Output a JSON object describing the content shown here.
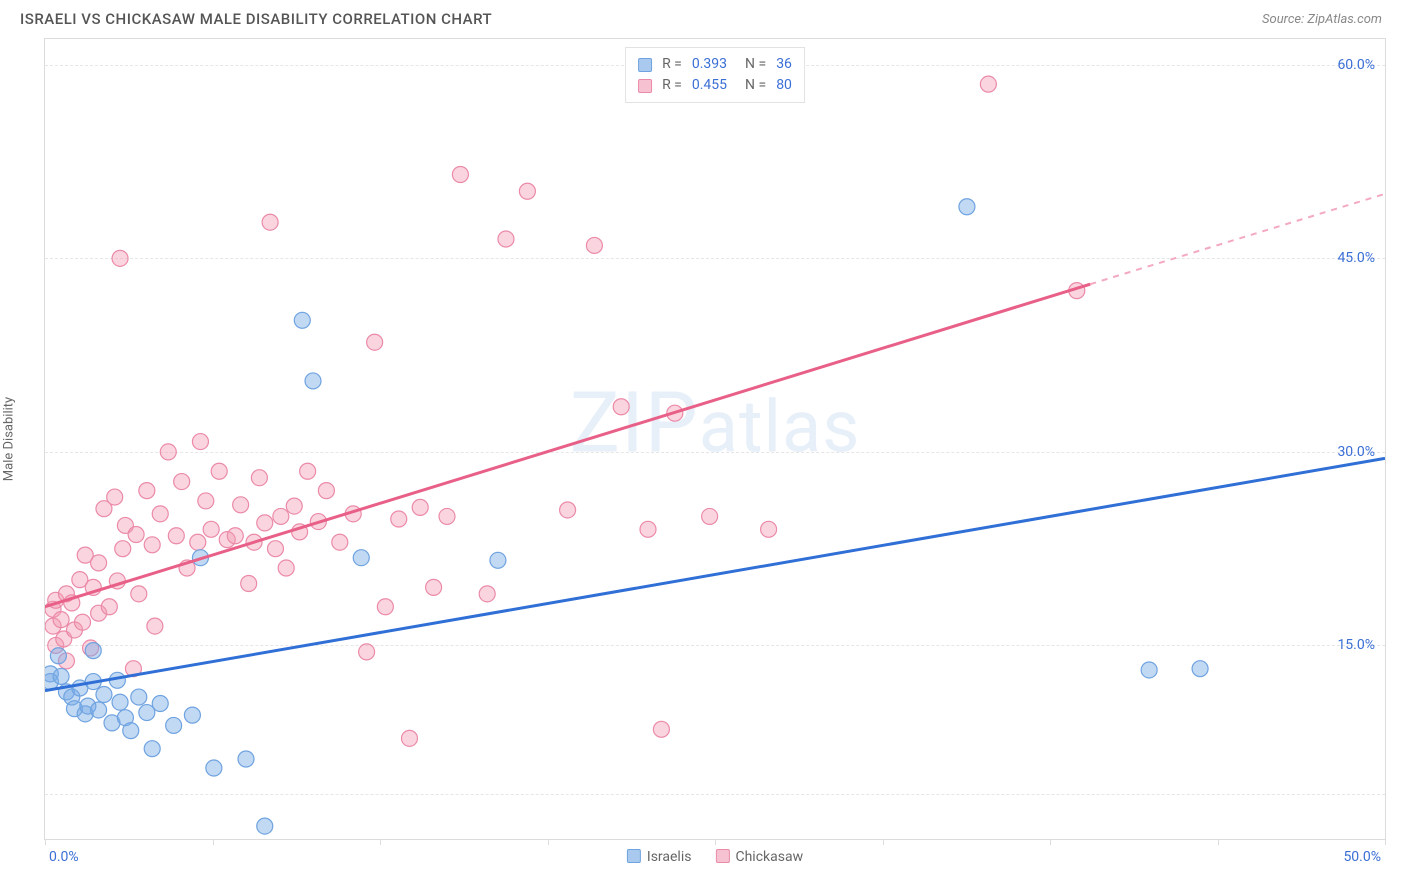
{
  "header": {
    "title": "ISRAELI VS CHICKASAW MALE DISABILITY CORRELATION CHART",
    "source": "Source: ZipAtlas.com"
  },
  "chart": {
    "type": "scatter",
    "ylabel": "Male Disability",
    "xlim": [
      0,
      50
    ],
    "ylim": [
      0,
      62
    ],
    "xtick_positions": [
      0,
      6.25,
      12.5,
      18.75,
      25,
      31.25,
      37.5,
      43.75,
      50
    ],
    "x_label_min": "0.0%",
    "x_label_max": "50.0%",
    "yticks": [
      {
        "v": 15,
        "label": "15.0%"
      },
      {
        "v": 30,
        "label": "30.0%"
      },
      {
        "v": 45,
        "label": "45.0%"
      },
      {
        "v": 60,
        "label": "60.0%"
      }
    ],
    "ygrid": [
      3.5,
      15,
      30,
      45,
      60
    ],
    "grid_color": "#e6e6e6",
    "background_color": "#ffffff",
    "tick_label_color": "#3b6fd6",
    "watermark": "ZIPatlas",
    "series": {
      "israelis": {
        "label": "Israelis",
        "fill": "rgba(120,170,230,0.45)",
        "stroke": "#6fa3e0",
        "swatch": "#a9c9ee",
        "swatch_border": "#6fa3e0",
        "marker_r": 8,
        "trend": {
          "x1": 0,
          "y1": 11.5,
          "x2": 50,
          "y2": 29.5,
          "color": "#2f6fd6"
        },
        "trend_ext": null,
        "R": "0.393",
        "N": "36",
        "points": [
          [
            0.2,
            12.8
          ],
          [
            0.2,
            12.2
          ],
          [
            0.6,
            12.6
          ],
          [
            0.5,
            14.2
          ],
          [
            0.8,
            11.4
          ],
          [
            1.0,
            11.0
          ],
          [
            1.1,
            10.1
          ],
          [
            1.3,
            11.7
          ],
          [
            1.5,
            9.7
          ],
          [
            1.6,
            10.3
          ],
          [
            1.8,
            12.2
          ],
          [
            1.8,
            14.6
          ],
          [
            2.0,
            10.0
          ],
          [
            2.2,
            11.2
          ],
          [
            2.5,
            9.0
          ],
          [
            2.8,
            10.6
          ],
          [
            2.7,
            12.3
          ],
          [
            3.0,
            9.4
          ],
          [
            3.2,
            8.4
          ],
          [
            3.5,
            11.0
          ],
          [
            3.8,
            9.8
          ],
          [
            4.0,
            7.0
          ],
          [
            4.3,
            10.5
          ],
          [
            4.8,
            8.8
          ],
          [
            5.5,
            9.6
          ],
          [
            5.8,
            21.8
          ],
          [
            6.3,
            5.5
          ],
          [
            7.5,
            6.2
          ],
          [
            8.2,
            1.0
          ],
          [
            9.6,
            40.2
          ],
          [
            10.0,
            35.5
          ],
          [
            11.8,
            21.8
          ],
          [
            16.9,
            21.6
          ],
          [
            34.4,
            49.0
          ],
          [
            41.2,
            13.1
          ],
          [
            43.1,
            13.2
          ]
        ]
      },
      "chickasaw": {
        "label": "Chickasaw",
        "fill": "rgba(242,150,175,0.40)",
        "stroke": "#eb8aa8",
        "swatch": "#f6c2d1",
        "swatch_border": "#eb8aa8",
        "marker_r": 8,
        "trend": {
          "x1": 0,
          "y1": 18.0,
          "x2": 39,
          "y2": 43.0,
          "color": "#e85f88"
        },
        "trend_ext": {
          "x1": 39,
          "y1": 43.0,
          "x2": 50,
          "y2": 50.0,
          "color": "#f3a9bf"
        },
        "R": "0.455",
        "N": "80",
        "points": [
          [
            0.3,
            16.5
          ],
          [
            0.3,
            17.8
          ],
          [
            0.4,
            15.0
          ],
          [
            0.4,
            18.5
          ],
          [
            0.6,
            17.0
          ],
          [
            0.7,
            15.5
          ],
          [
            0.8,
            19.0
          ],
          [
            0.8,
            13.8
          ],
          [
            1.0,
            18.3
          ],
          [
            1.1,
            16.2
          ],
          [
            1.3,
            20.1
          ],
          [
            1.4,
            16.8
          ],
          [
            1.5,
            22.0
          ],
          [
            1.7,
            14.8
          ],
          [
            1.8,
            19.5
          ],
          [
            2.0,
            21.4
          ],
          [
            2.0,
            17.5
          ],
          [
            2.2,
            25.6
          ],
          [
            2.4,
            18.0
          ],
          [
            2.6,
            26.5
          ],
          [
            2.7,
            20.0
          ],
          [
            2.9,
            22.5
          ],
          [
            2.8,
            45.0
          ],
          [
            3.0,
            24.3
          ],
          [
            3.3,
            13.2
          ],
          [
            3.4,
            23.6
          ],
          [
            3.5,
            19.0
          ],
          [
            3.8,
            27.0
          ],
          [
            4.0,
            22.8
          ],
          [
            4.1,
            16.5
          ],
          [
            4.3,
            25.2
          ],
          [
            4.6,
            30.0
          ],
          [
            4.9,
            23.5
          ],
          [
            5.1,
            27.7
          ],
          [
            5.3,
            21.0
          ],
          [
            5.7,
            23.0
          ],
          [
            5.8,
            30.8
          ],
          [
            6.0,
            26.2
          ],
          [
            6.2,
            24.0
          ],
          [
            6.5,
            28.5
          ],
          [
            6.8,
            23.2
          ],
          [
            7.1,
            23.5
          ],
          [
            7.3,
            25.9
          ],
          [
            7.6,
            19.8
          ],
          [
            7.8,
            23.0
          ],
          [
            8.0,
            28.0
          ],
          [
            8.2,
            24.5
          ],
          [
            8.4,
            47.8
          ],
          [
            8.6,
            22.5
          ],
          [
            8.8,
            25.0
          ],
          [
            9.0,
            21.0
          ],
          [
            9.3,
            25.8
          ],
          [
            9.5,
            23.8
          ],
          [
            9.8,
            28.5
          ],
          [
            10.2,
            24.6
          ],
          [
            10.5,
            27.0
          ],
          [
            11.0,
            23.0
          ],
          [
            11.5,
            25.2
          ],
          [
            12.0,
            14.5
          ],
          [
            12.3,
            38.5
          ],
          [
            12.7,
            18.0
          ],
          [
            13.2,
            24.8
          ],
          [
            13.6,
            7.8
          ],
          [
            14.0,
            25.7
          ],
          [
            14.5,
            19.5
          ],
          [
            15.0,
            25.0
          ],
          [
            15.5,
            51.5
          ],
          [
            16.5,
            19.0
          ],
          [
            17.2,
            46.5
          ],
          [
            18.0,
            50.2
          ],
          [
            19.5,
            25.5
          ],
          [
            20.5,
            46.0
          ],
          [
            21.5,
            33.5
          ],
          [
            22.5,
            24.0
          ],
          [
            23.0,
            8.5
          ],
          [
            23.5,
            33.0
          ],
          [
            24.8,
            25.0
          ],
          [
            27.0,
            24.0
          ],
          [
            35.2,
            58.5
          ],
          [
            38.5,
            42.5
          ]
        ]
      }
    },
    "legend_bottom": [
      "israelis",
      "chickasaw"
    ]
  }
}
